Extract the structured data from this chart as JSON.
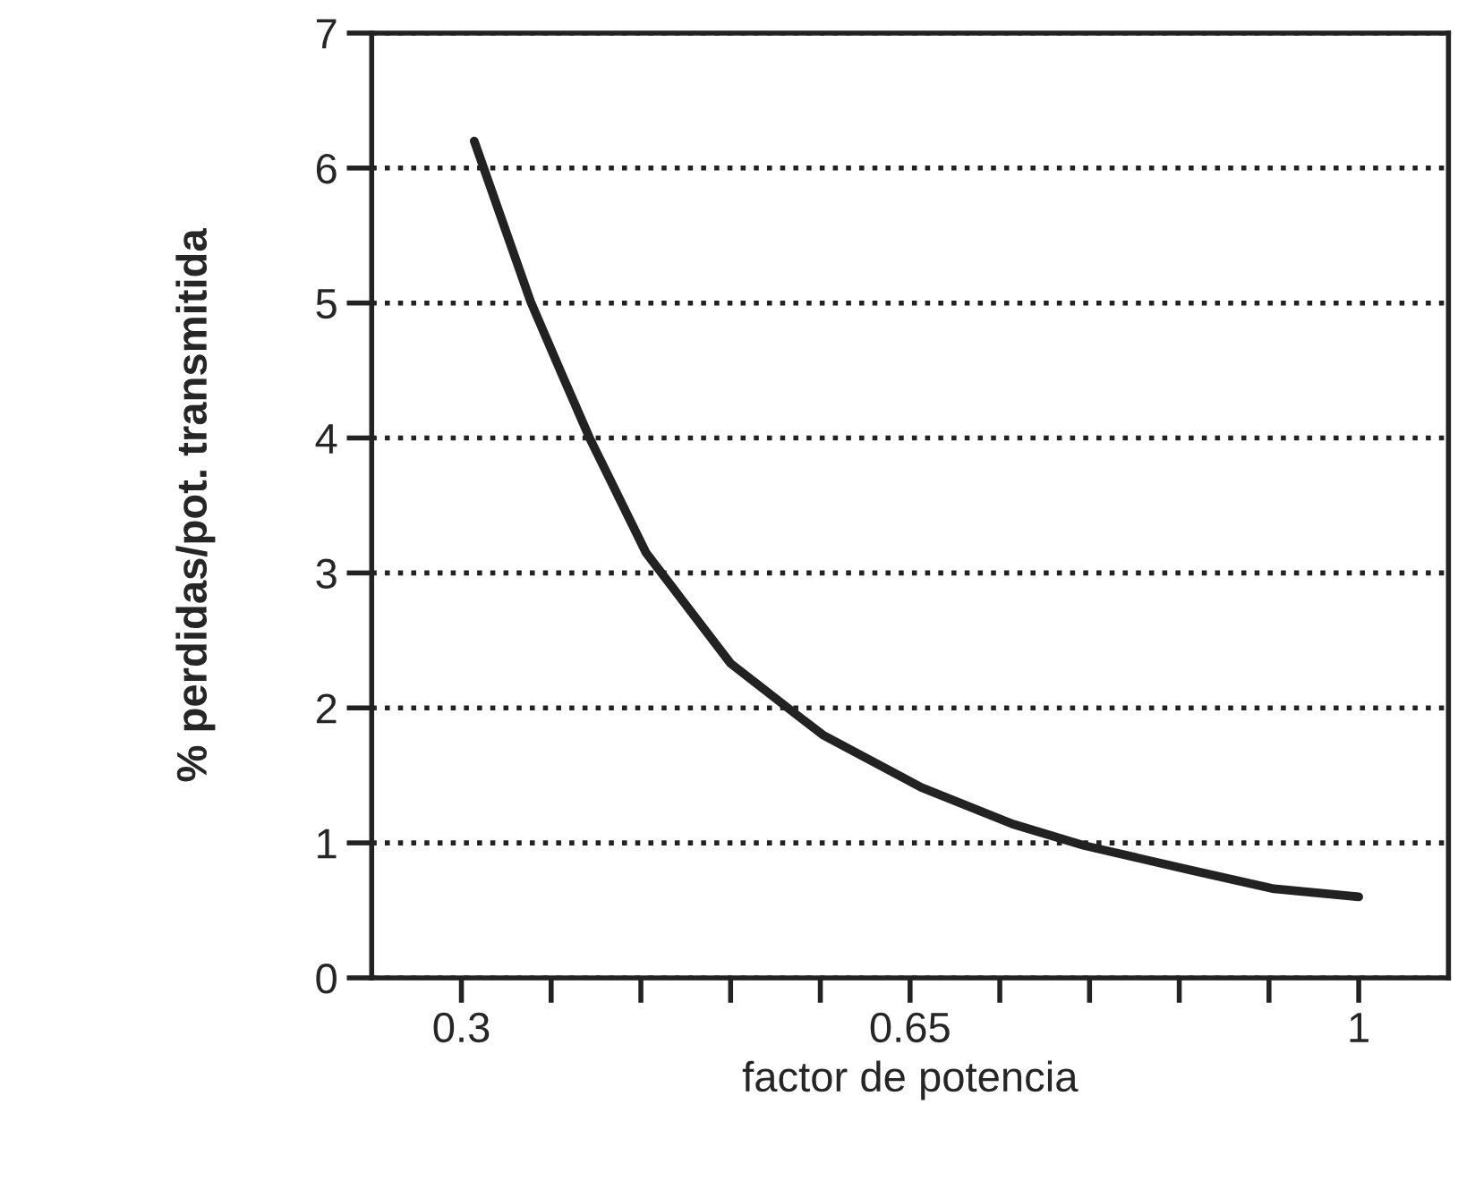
{
  "chart_data": {
    "type": "line",
    "xlabel": "factor de potencia",
    "ylabel": "% perdidas/pot. transmitida",
    "x": [
      0.31,
      0.354,
      0.378,
      0.4,
      0.444,
      0.51,
      0.56,
      0.582,
      0.659,
      0.73,
      0.786,
      0.868,
      0.934,
      1.0
    ],
    "series": [
      {
        "color": "#222222",
        "values": [
          6.2,
          5.01,
          4.48,
          4.0,
          3.15,
          2.33,
          1.96,
          1.8,
          1.41,
          1.14,
          0.98,
          0.8,
          0.66,
          0.6
        ]
      }
    ],
    "xlim": [
      0.23,
      1.07
    ],
    "xticks": [
      0.3,
      {
        "value": 0.37,
        "label": null
      },
      {
        "value": 0.44,
        "label": null
      },
      {
        "value": 0.51,
        "label": null
      },
      {
        "value": 0.58,
        "label": null
      },
      0.65,
      {
        "value": 0.72,
        "label": null
      },
      {
        "value": 0.79,
        "label": null
      },
      {
        "value": 0.86,
        "label": null
      },
      {
        "value": 0.93,
        "label": null
      },
      1
    ],
    "ylim": [
      0,
      7
    ],
    "yticks": [
      0,
      1,
      2,
      3,
      4,
      5,
      6,
      7
    ],
    "grid": "y",
    "line_style": "solid",
    "marker": "none",
    "legend": false
  }
}
